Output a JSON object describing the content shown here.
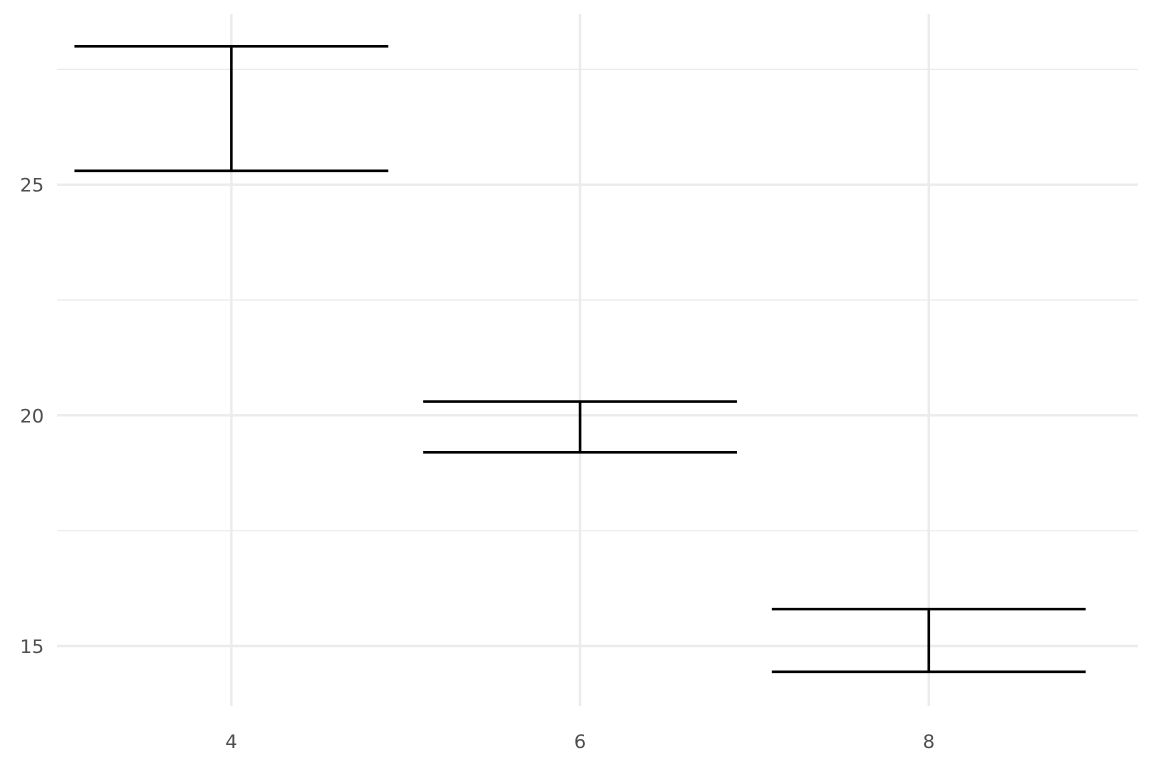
{
  "chart_data": {
    "type": "errorbar",
    "title": "",
    "xlabel": "",
    "ylabel": "",
    "x_ticks": [
      "4",
      "6",
      "8"
    ],
    "y_ticks": [
      "15",
      "20",
      "25"
    ],
    "xlim": [
      3.0,
      9.2
    ],
    "ylim": [
      13.7,
      28.7
    ],
    "grid": true,
    "errorbar_halfwidth": 0.9,
    "points": [
      {
        "x": 4,
        "lower": 25.3,
        "upper": 28.0
      },
      {
        "x": 6,
        "lower": 19.2,
        "upper": 20.3
      },
      {
        "x": 8,
        "lower": 14.44,
        "upper": 15.8
      }
    ],
    "colors": {
      "bar": "#000000",
      "grid": "#ebebeb",
      "tick_text": "#4d4d4d",
      "background": "#ffffff"
    }
  }
}
